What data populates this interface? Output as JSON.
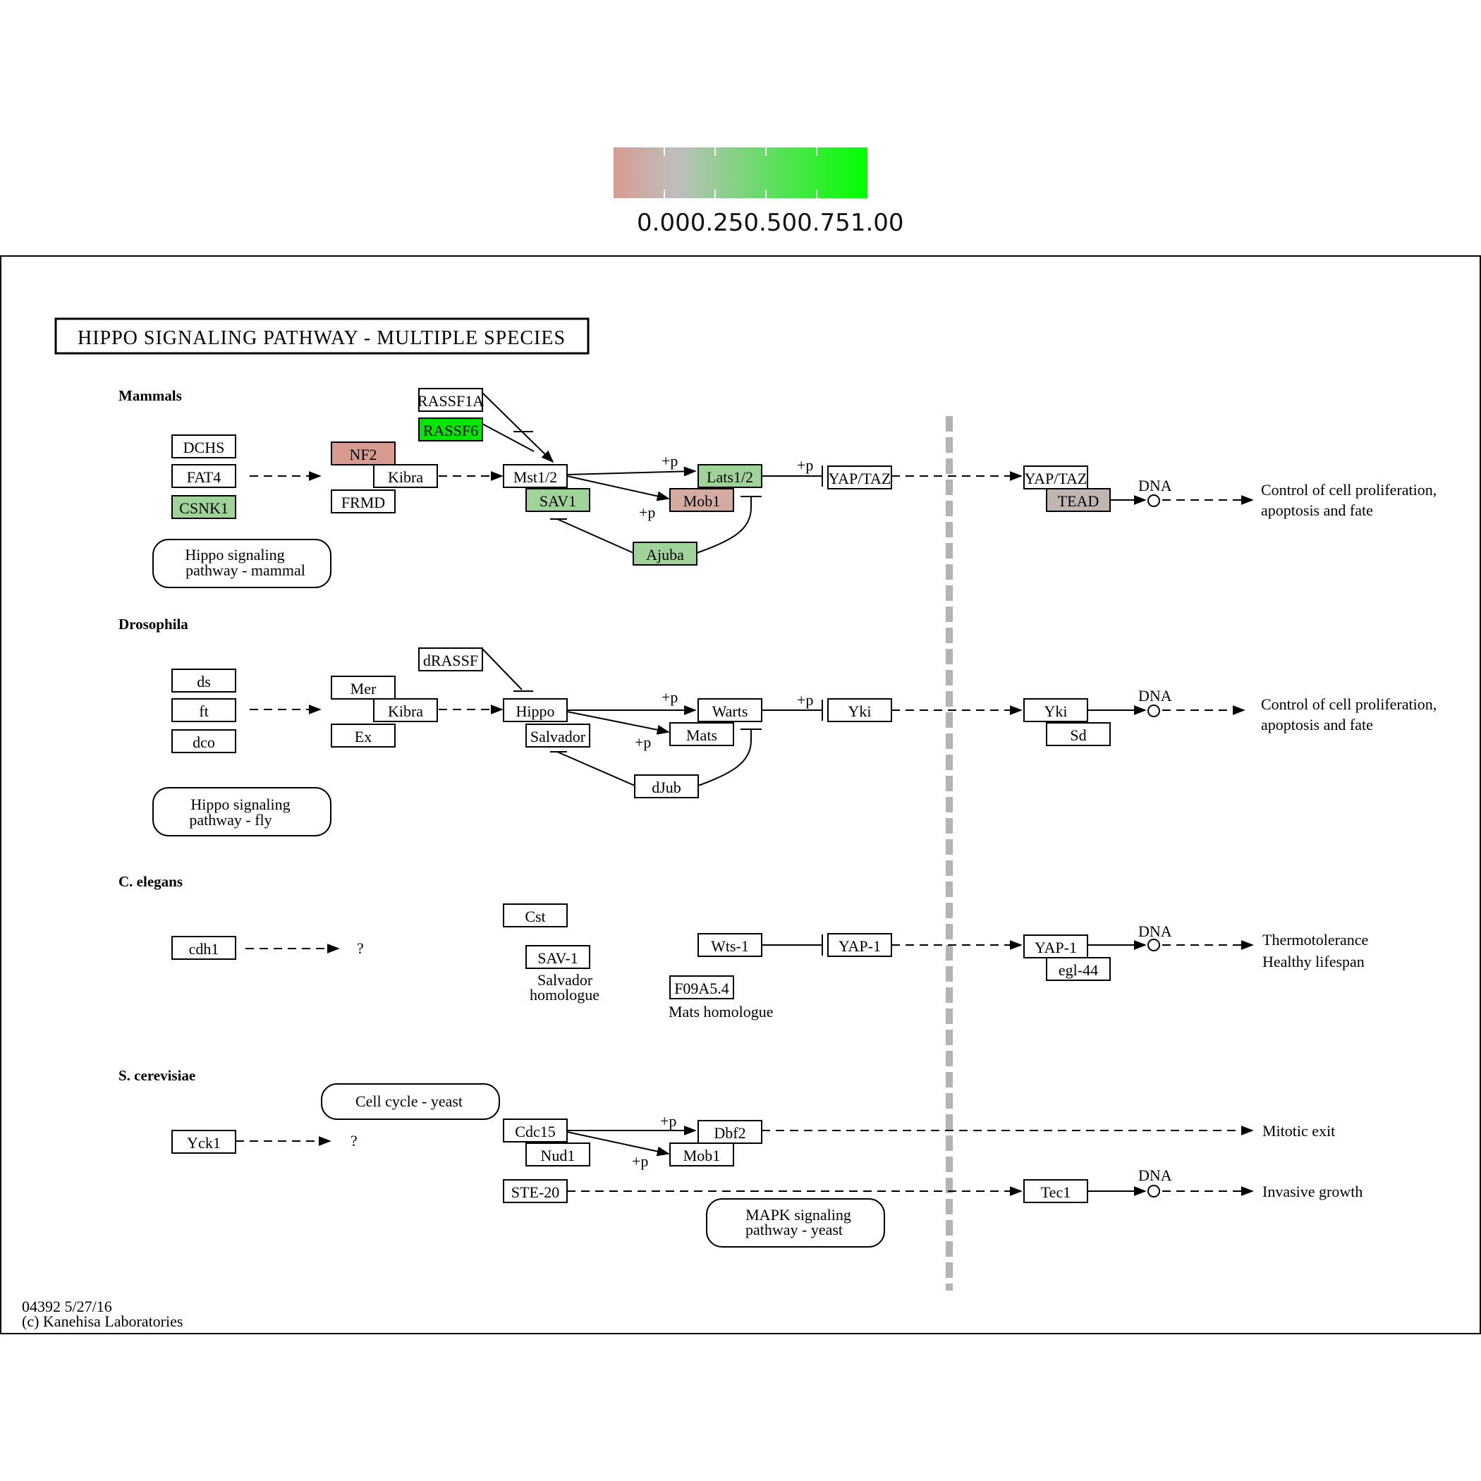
{
  "legend": {
    "ticks": [
      "0.00",
      "0.25",
      "0.50",
      "0.75",
      "1.00"
    ],
    "colors": [
      "#d79b91",
      "#bebebe",
      "#00ff00"
    ]
  },
  "map": {
    "title": "HIPPO SIGNALING PATHWAY - MULTIPLE SPECIES",
    "footer_id": "04392 5/27/16",
    "footer_copyright": "(c) Kanehisa Laboratories"
  },
  "colors": {
    "salmon": "#d79b91",
    "grey": "#bfb5b1",
    "lightgreen": "#9fd39a",
    "brightgreen": "#00e600",
    "separator": "#b3b3b3"
  },
  "sections": {
    "mammals": "Mammals",
    "drosophila": "Drosophila",
    "celegans": "C. elegans",
    "scerevisiae": "S. cerevisiae"
  },
  "labels": {
    "p": "+p",
    "dna": "DNA",
    "question": "?",
    "prolif_1": "Control of cell proliferation,",
    "prolif_2": "apoptosis and fate",
    "thermo": "Thermotolerance",
    "lifespan": "Healthy lifespan",
    "mitotic": "Mitotic exit",
    "invasive": "Invasive growth",
    "salvador_homologue_1": "Salvador",
    "salvador_homologue_2": "homologue",
    "mats_homologue": "Mats homologue"
  },
  "maps": {
    "mammal_1": "Hippo signaling",
    "mammal_2": "pathway - mammal",
    "fly_1": "Hippo signaling",
    "fly_2": "pathway - fly",
    "yeast_cell_cycle": "Cell cycle - yeast",
    "mapk_1": "MAPK signaling",
    "mapk_2": "pathway - yeast"
  },
  "genes": {
    "dchs": "DCHS",
    "fat4": "FAT4",
    "csnk1": "CSNK1",
    "nf2": "NF2",
    "kibra_m": "Kibra",
    "frmd": "FRMD",
    "rassf1a": "RASSF1A",
    "rassf6": "RASSF6",
    "mst12": "Mst1/2",
    "sav1": "SAV1",
    "lats12": "Lats1/2",
    "mob1_m": "Mob1",
    "ajuba": "Ajuba",
    "yaptaz_1": "YAP/TAZ",
    "yaptaz_2": "YAP/TAZ",
    "tead": "TEAD",
    "ds": "ds",
    "ft": "ft",
    "dco": "dco",
    "mer": "Mer",
    "kibra_d": "Kibra",
    "ex": "Ex",
    "drassf": "dRASSF",
    "hippo": "Hippo",
    "salvador": "Salvador",
    "warts": "Warts",
    "mats": "Mats",
    "djub": "dJub",
    "yki_1": "Yki",
    "yki_2": "Yki",
    "sd": "Sd",
    "cdh1": "cdh1",
    "cst": "Cst",
    "sav1_c": "SAV-1",
    "wts1": "Wts-1",
    "f09a54": "F09A5.4",
    "yap1_1": "YAP-1",
    "yap1_2": "YAP-1",
    "egl44": "egl-44",
    "yck1": "Yck1",
    "cdc15": "Cdc15",
    "nud1": "Nud1",
    "dbf2": "Dbf2",
    "mob1_y": "Mob1",
    "ste20": "STE-20",
    "tec1": "Tec1"
  }
}
